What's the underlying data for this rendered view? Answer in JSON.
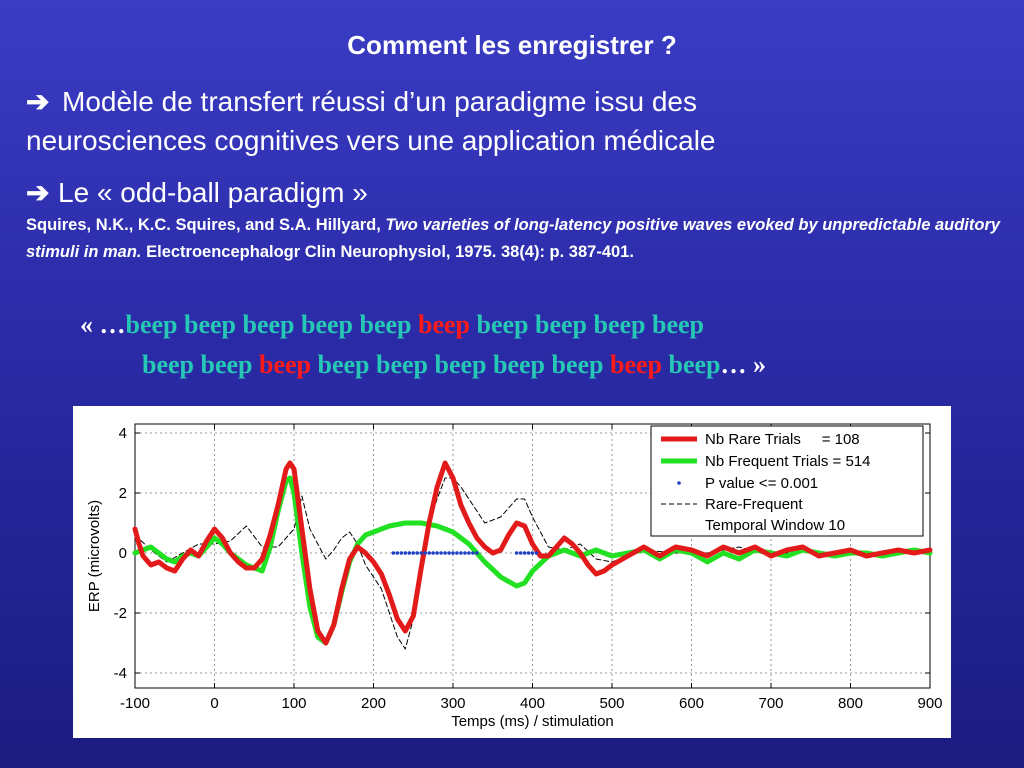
{
  "slide": {
    "title": "Comment les enregistrer ?",
    "arrow_glyph": "➔",
    "point1_line1": "Modèle de transfert réussi d’un paradigme issu des",
    "point1_line2": "neurosciences cognitives vers une application médicale",
    "point2": "Le « odd-ball paradigm »",
    "ref_authors": "Squires, N.K., K.C. Squires, and S.A. Hillyard, ",
    "ref_title": "Two varieties of long-latency positive waves evoked by unpredictable auditory stimuli in man.",
    "ref_journal": " Electroencephalogr Clin Neurophysiol, 1975. 38(4): p. 387-401.",
    "quote_open": "« …",
    "quote_close": " »",
    "ellipsis": "…",
    "beep_line1": [
      {
        "t": "beep beep beep beep beep ",
        "c": "b"
      },
      {
        "t": "beep",
        "c": "r"
      },
      {
        "t": " beep beep beep beep",
        "c": "b"
      }
    ],
    "beep_line2": [
      {
        "t": "beep beep ",
        "c": "b"
      },
      {
        "t": "beep",
        "c": "r"
      },
      {
        "t": " beep beep beep beep beep ",
        "c": "b"
      },
      {
        "t": "beep",
        "c": "r"
      },
      {
        "t": " beep",
        "c": "b"
      }
    ]
  },
  "chart_data": {
    "type": "line",
    "xlabel": "Temps (ms) / stimulation",
    "ylabel": "ERP (microvolts)",
    "xlim": [
      -100,
      900
    ],
    "ylim": [
      -4.5,
      4.3
    ],
    "xticks": [
      -100,
      0,
      100,
      200,
      300,
      400,
      500,
      600,
      700,
      800,
      900
    ],
    "yticks": [
      4,
      2,
      0,
      -2,
      -4
    ],
    "grid": true,
    "legend_position": "top-right",
    "series": [
      {
        "name": "Nb Rare Trials     = 108",
        "color": "#e31a1a",
        "style": "solid-thick",
        "x": [
          -100,
          -95,
          -90,
          -80,
          -70,
          -60,
          -50,
          -40,
          -30,
          -20,
          -10,
          0,
          10,
          20,
          30,
          40,
          50,
          60,
          70,
          80,
          90,
          95,
          100,
          110,
          120,
          130,
          140,
          150,
          160,
          170,
          180,
          190,
          200,
          210,
          220,
          230,
          240,
          250,
          260,
          270,
          280,
          290,
          300,
          310,
          320,
          330,
          340,
          350,
          360,
          370,
          380,
          390,
          400,
          410,
          420,
          430,
          440,
          450,
          460,
          470,
          480,
          490,
          500,
          520,
          540,
          560,
          580,
          600,
          620,
          640,
          660,
          680,
          700,
          720,
          740,
          760,
          780,
          800,
          820,
          840,
          860,
          880,
          900
        ],
        "y": [
          0.8,
          0.3,
          -0.1,
          -0.4,
          -0.3,
          -0.5,
          -0.6,
          -0.2,
          0.1,
          -0.1,
          0.4,
          0.8,
          0.5,
          0.0,
          -0.3,
          -0.5,
          -0.5,
          -0.2,
          0.6,
          1.6,
          2.8,
          3.0,
          2.8,
          0.8,
          -1.2,
          -2.6,
          -3.0,
          -2.4,
          -1.2,
          -0.2,
          0.2,
          0.0,
          -0.3,
          -0.7,
          -1.4,
          -2.2,
          -2.6,
          -2.1,
          -0.5,
          1.0,
          2.2,
          3.0,
          2.5,
          1.6,
          1.0,
          0.5,
          0.2,
          0.0,
          0.1,
          0.6,
          1.0,
          0.9,
          0.3,
          -0.1,
          -0.1,
          0.2,
          0.5,
          0.3,
          0.0,
          -0.4,
          -0.7,
          -0.6,
          -0.4,
          -0.1,
          0.2,
          -0.1,
          0.2,
          0.1,
          -0.1,
          0.2,
          0.0,
          0.2,
          -0.1,
          0.1,
          0.2,
          -0.1,
          0.0,
          0.1,
          -0.1,
          0.0,
          0.1,
          0.0,
          0.1
        ]
      },
      {
        "name": "Nb Frequent Trials = 514",
        "color": "#22e022",
        "style": "solid-thick",
        "x": [
          -100,
          -90,
          -80,
          -70,
          -60,
          -50,
          -40,
          -30,
          -20,
          -10,
          0,
          10,
          20,
          30,
          40,
          50,
          60,
          70,
          80,
          90,
          95,
          100,
          110,
          120,
          130,
          140,
          150,
          160,
          170,
          180,
          190,
          200,
          220,
          240,
          260,
          280,
          300,
          320,
          340,
          360,
          380,
          390,
          400,
          420,
          440,
          460,
          480,
          500,
          520,
          540,
          560,
          580,
          600,
          620,
          640,
          660,
          680,
          700,
          720,
          740,
          760,
          780,
          800,
          820,
          840,
          860,
          880,
          900
        ],
        "y": [
          0.0,
          0.1,
          0.2,
          0.0,
          -0.2,
          -0.3,
          -0.1,
          0.0,
          -0.1,
          0.2,
          0.5,
          0.3,
          0.0,
          -0.2,
          -0.4,
          -0.5,
          -0.6,
          0.2,
          1.4,
          2.4,
          2.5,
          2.0,
          0.0,
          -1.8,
          -2.8,
          -3.0,
          -2.4,
          -1.3,
          -0.3,
          0.3,
          0.6,
          0.7,
          0.9,
          1.0,
          1.0,
          0.9,
          0.7,
          0.3,
          -0.3,
          -0.8,
          -1.1,
          -1.0,
          -0.6,
          -0.1,
          0.1,
          -0.1,
          0.1,
          -0.1,
          0.0,
          0.1,
          -0.2,
          0.1,
          0.0,
          -0.3,
          0.0,
          -0.2,
          0.1,
          0.0,
          -0.1,
          0.1,
          0.0,
          -0.1,
          0.0,
          0.0,
          -0.1,
          0.0,
          0.1,
          0.0
        ]
      },
      {
        "name": "P value <= 0.001",
        "color": "#1f3fc7",
        "style": "dots",
        "x": [
          225,
          230,
          235,
          240,
          245,
          250,
          255,
          260,
          265,
          270,
          275,
          280,
          285,
          290,
          295,
          300,
          305,
          310,
          315,
          320,
          325,
          330,
          380,
          385,
          390,
          395,
          400,
          405
        ],
        "y": [
          0,
          0,
          0,
          0,
          0,
          0,
          0,
          0,
          0,
          0,
          0,
          0,
          0,
          0,
          0,
          0,
          0,
          0,
          0,
          0,
          0,
          0,
          0,
          0,
          0,
          0,
          0,
          0
        ]
      },
      {
        "name": "Rare-Frequent",
        "color": "#000000",
        "style": "dashed-thin",
        "x": [
          -100,
          -80,
          -60,
          -40,
          -20,
          0,
          20,
          40,
          60,
          80,
          100,
          110,
          120,
          130,
          140,
          150,
          160,
          170,
          180,
          190,
          200,
          210,
          220,
          230,
          240,
          250,
          260,
          270,
          280,
          290,
          300,
          310,
          320,
          330,
          340,
          350,
          360,
          370,
          380,
          390,
          400,
          420,
          440,
          460,
          480,
          500,
          540,
          580,
          620,
          660,
          700,
          740,
          780,
          820,
          860,
          900
        ],
        "y": [
          0.6,
          0.1,
          -0.3,
          0.0,
          0.3,
          0.3,
          0.4,
          0.9,
          0.2,
          0.2,
          0.8,
          1.9,
          0.8,
          0.3,
          -0.2,
          0.1,
          0.5,
          0.7,
          0.3,
          -0.4,
          -0.8,
          -1.2,
          -2.0,
          -2.8,
          -3.2,
          -2.2,
          -0.2,
          1.0,
          1.8,
          2.5,
          2.5,
          2.2,
          1.8,
          1.4,
          1.0,
          1.1,
          1.2,
          1.5,
          1.8,
          1.8,
          1.2,
          0.2,
          0.1,
          0.3,
          -0.2,
          -0.3,
          0.1,
          0.0,
          0.0,
          0.2,
          -0.1,
          0.1,
          0.0,
          -0.1,
          0.1,
          0.0
        ]
      }
    ],
    "legend_extra": "Temporal Window 10"
  },
  "colors": {
    "bg_top": "#3a3cc4",
    "bg_bottom": "#1b1b80",
    "beep": "#26c7b4",
    "beep_rare": "#ff1a1a"
  }
}
